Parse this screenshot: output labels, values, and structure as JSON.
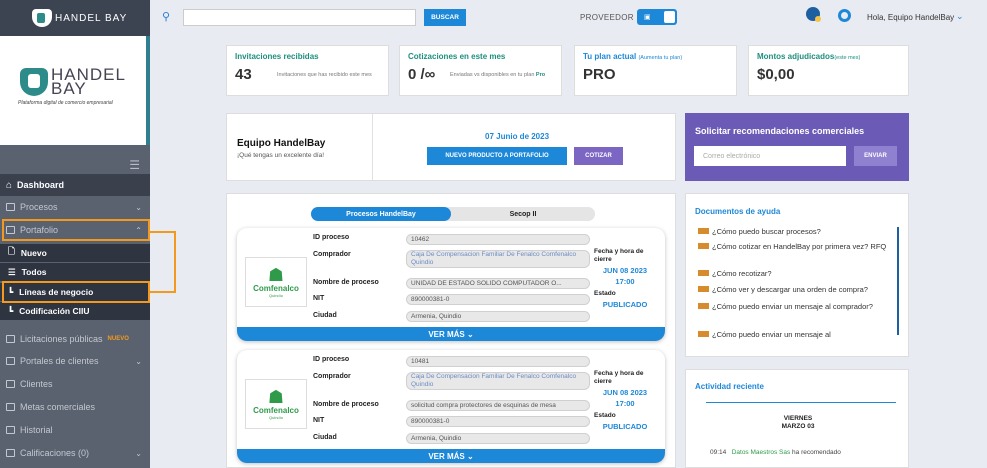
{
  "app": {
    "brand_small": "HANDEL BAY",
    "brand_big_1": "HANDEL",
    "brand_big_2": "BAY",
    "tagline": "Plataforma digital de comercio empresarial"
  },
  "topbar": {
    "search_placeholder": "",
    "search_button": "BUSCAR",
    "mode_label": "PROVEEDOR",
    "greeting": "Hola, Equipo HandelBay"
  },
  "sidebar": {
    "dashboard": "Dashboard",
    "items": [
      {
        "label": "Procesos"
      },
      {
        "label": "Portafolio"
      },
      {
        "label": "Licitaciones públicas",
        "badge": "NUEVO"
      },
      {
        "label": "Portales de clientes"
      },
      {
        "label": "Clientes"
      },
      {
        "label": "Metas comerciales"
      },
      {
        "label": "Historial"
      },
      {
        "label": "Calificaciones (0)"
      }
    ],
    "subitems": [
      "Nuevo",
      "Todos",
      "Líneas de negocio",
      "Codificación CIIU"
    ]
  },
  "stats": [
    {
      "title": "Invitaciones recibidas",
      "value": "43",
      "desc": "Invitaciones que has recibido este mes"
    },
    {
      "title": "Cotizaciones en este mes",
      "value": "0 /∞",
      "desc": "Enviadas vs disponibles en tu plan",
      "desc_plan": "Pro"
    },
    {
      "title": "Tu plan actual",
      "title_sm": "(Aumenta tu plan)",
      "value": "PRO"
    },
    {
      "title": "Montos adjudicados",
      "title_sm": "(este mes)",
      "value": "$0,00"
    }
  ],
  "welcome": {
    "title": "Equipo HandelBay",
    "subtitle": "¡Qué tengas un excelente día!",
    "date": "07 Junio de 2023",
    "btn_nuevo": "NUEVO PRODUCTO A PORTAFOLIO",
    "btn_cotizar": "COTIZAR"
  },
  "recommend": {
    "title": "Solicitar recomendaciones comerciales",
    "placeholder": "Correo electrónico",
    "button": "ENVIAR"
  },
  "process_tabs": [
    "Procesos HandelBay",
    "Secop II"
  ],
  "labels": {
    "id": "ID proceso",
    "buyer": "Comprador",
    "name": "Nombre de proceso",
    "nit": "NIT",
    "city": "Ciudad",
    "close": "Fecha y hora de cierre",
    "status": "Estado",
    "more": "VER MÁS ⌄"
  },
  "processes": [
    {
      "id": "10462",
      "buyer": "Caja De Compensacion Familiar De Fenalco Comfenalco Quindio",
      "name": "UNIDAD DE ESTADO SOLIDO COMPUTADOR O...",
      "nit": "890000381-0",
      "city": "Armenia, Quindio",
      "date": "JUN 08 2023",
      "time": "17:00",
      "status": "PUBLICADO",
      "logo": "Comfenalco",
      "logo_city": "Quindío"
    },
    {
      "id": "10481",
      "buyer": "Caja De Compensacion Familiar De Fenalco Comfenalco Quindio",
      "name": "solicitud compra protectores de esquinas de mesa",
      "nit": "890000381-0",
      "city": "Armenia, Quindio",
      "date": "JUN 08 2023",
      "time": "17:00",
      "status": "PUBLICADO",
      "logo": "Comfenalco",
      "logo_city": "Quindío"
    }
  ],
  "docs": {
    "title": "Documentos de ayuda",
    "items": [
      "¿Cómo puedo buscar procesos?",
      "¿Cómo cotizar en HandelBay por primera vez? RFQ",
      "¿Cómo recotizar?",
      "¿Cómo ver y descargar una orden de compra?",
      "¿Cómo puedo enviar un mensaje al comprador?",
      "¿Cómo puedo enviar un mensaje al"
    ]
  },
  "activity": {
    "title": "Actividad reciente",
    "day": "VIERNES",
    "date": "MARZO 03",
    "time": "09:14",
    "who": "Datos Maestros Sas",
    "what": "ha recomendado"
  }
}
